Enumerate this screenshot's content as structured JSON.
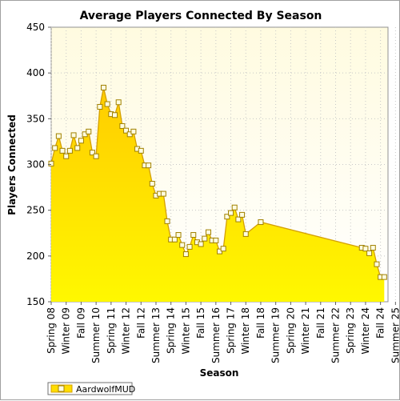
{
  "chart_data": {
    "type": "area",
    "title": "Average Players Connected By Season",
    "xlabel": "Season",
    "ylabel": "Players Connected",
    "ylim": [
      150,
      450
    ],
    "yticks": [
      150,
      200,
      250,
      300,
      350,
      400,
      450
    ],
    "xtick_labels": [
      "Spring 08",
      "Winter 09",
      "Fall 09",
      "Summer 10",
      "Spring 11",
      "Winter 12",
      "Fall 12",
      "Summer 13",
      "Spring 14",
      "Winter 15",
      "Fall 15",
      "Summer 16",
      "Spring 17",
      "Winter 18",
      "Fall 18",
      "Summer 19",
      "Spring 20",
      "Winter 21",
      "Fall 21",
      "Summer 22",
      "Spring 23",
      "Winter 24",
      "Fall 24",
      "Summer 25"
    ],
    "grid": true,
    "legend_position": "bottom-left",
    "colors": {
      "fill_top": "#ffcc00",
      "fill_bottom": "#fff800",
      "line": "#d4a000",
      "marker_fill": "#fffde0",
      "plot_bg_top": "#fffbe0",
      "plot_bg_bottom": "#ffffff",
      "grid": "#c8c8c8"
    },
    "series": [
      {
        "name": "AardwolfMUD",
        "x": [
          0,
          0.5,
          1,
          1.5,
          2,
          2.5,
          3,
          3.5,
          4,
          4.5,
          5,
          5.5,
          6,
          6.5,
          7,
          7.5,
          8,
          8.5,
          9,
          9.5,
          10,
          10.5,
          11,
          11.5,
          12,
          12.5,
          13,
          13.5,
          14,
          14.5,
          15,
          15.5,
          16,
          16.5,
          17,
          17.5,
          18,
          18.5,
          19,
          19.5,
          20,
          20.5,
          21,
          21.5,
          22,
          22.5,
          23,
          23.5,
          24,
          24.5,
          25,
          25.5,
          26,
          26.5,
          27,
          27.5,
          28,
          28.5,
          29,
          29.5,
          30,
          30.5,
          31,
          31.5,
          32,
          32.5,
          33,
          33.5,
          34,
          34.5,
          35,
          35.5,
          36,
          36.5,
          37,
          41.5,
          42,
          42.5,
          43,
          43.5,
          44,
          44.5,
          45
        ],
        "values": [
          301,
          318,
          331,
          315,
          309,
          315,
          332,
          318,
          326,
          333,
          336,
          313,
          309,
          363,
          384,
          366,
          355,
          354,
          368,
          342,
          337,
          333,
          336,
          317,
          315,
          299,
          299,
          279,
          266,
          268,
          268,
          238,
          218,
          218,
          223,
          212,
          202,
          210,
          223,
          215,
          213,
          219,
          226,
          217,
          217,
          205,
          208,
          243,
          247,
          253,
          240,
          245,
          224,
          null,
          null,
          null,
          237,
          null,
          null,
          null,
          null,
          null,
          null,
          null,
          null,
          null,
          null,
          null,
          null,
          null,
          null,
          null,
          null,
          null,
          null,
          209,
          208,
          203,
          209,
          191,
          177,
          177,
          null
        ]
      }
    ]
  }
}
